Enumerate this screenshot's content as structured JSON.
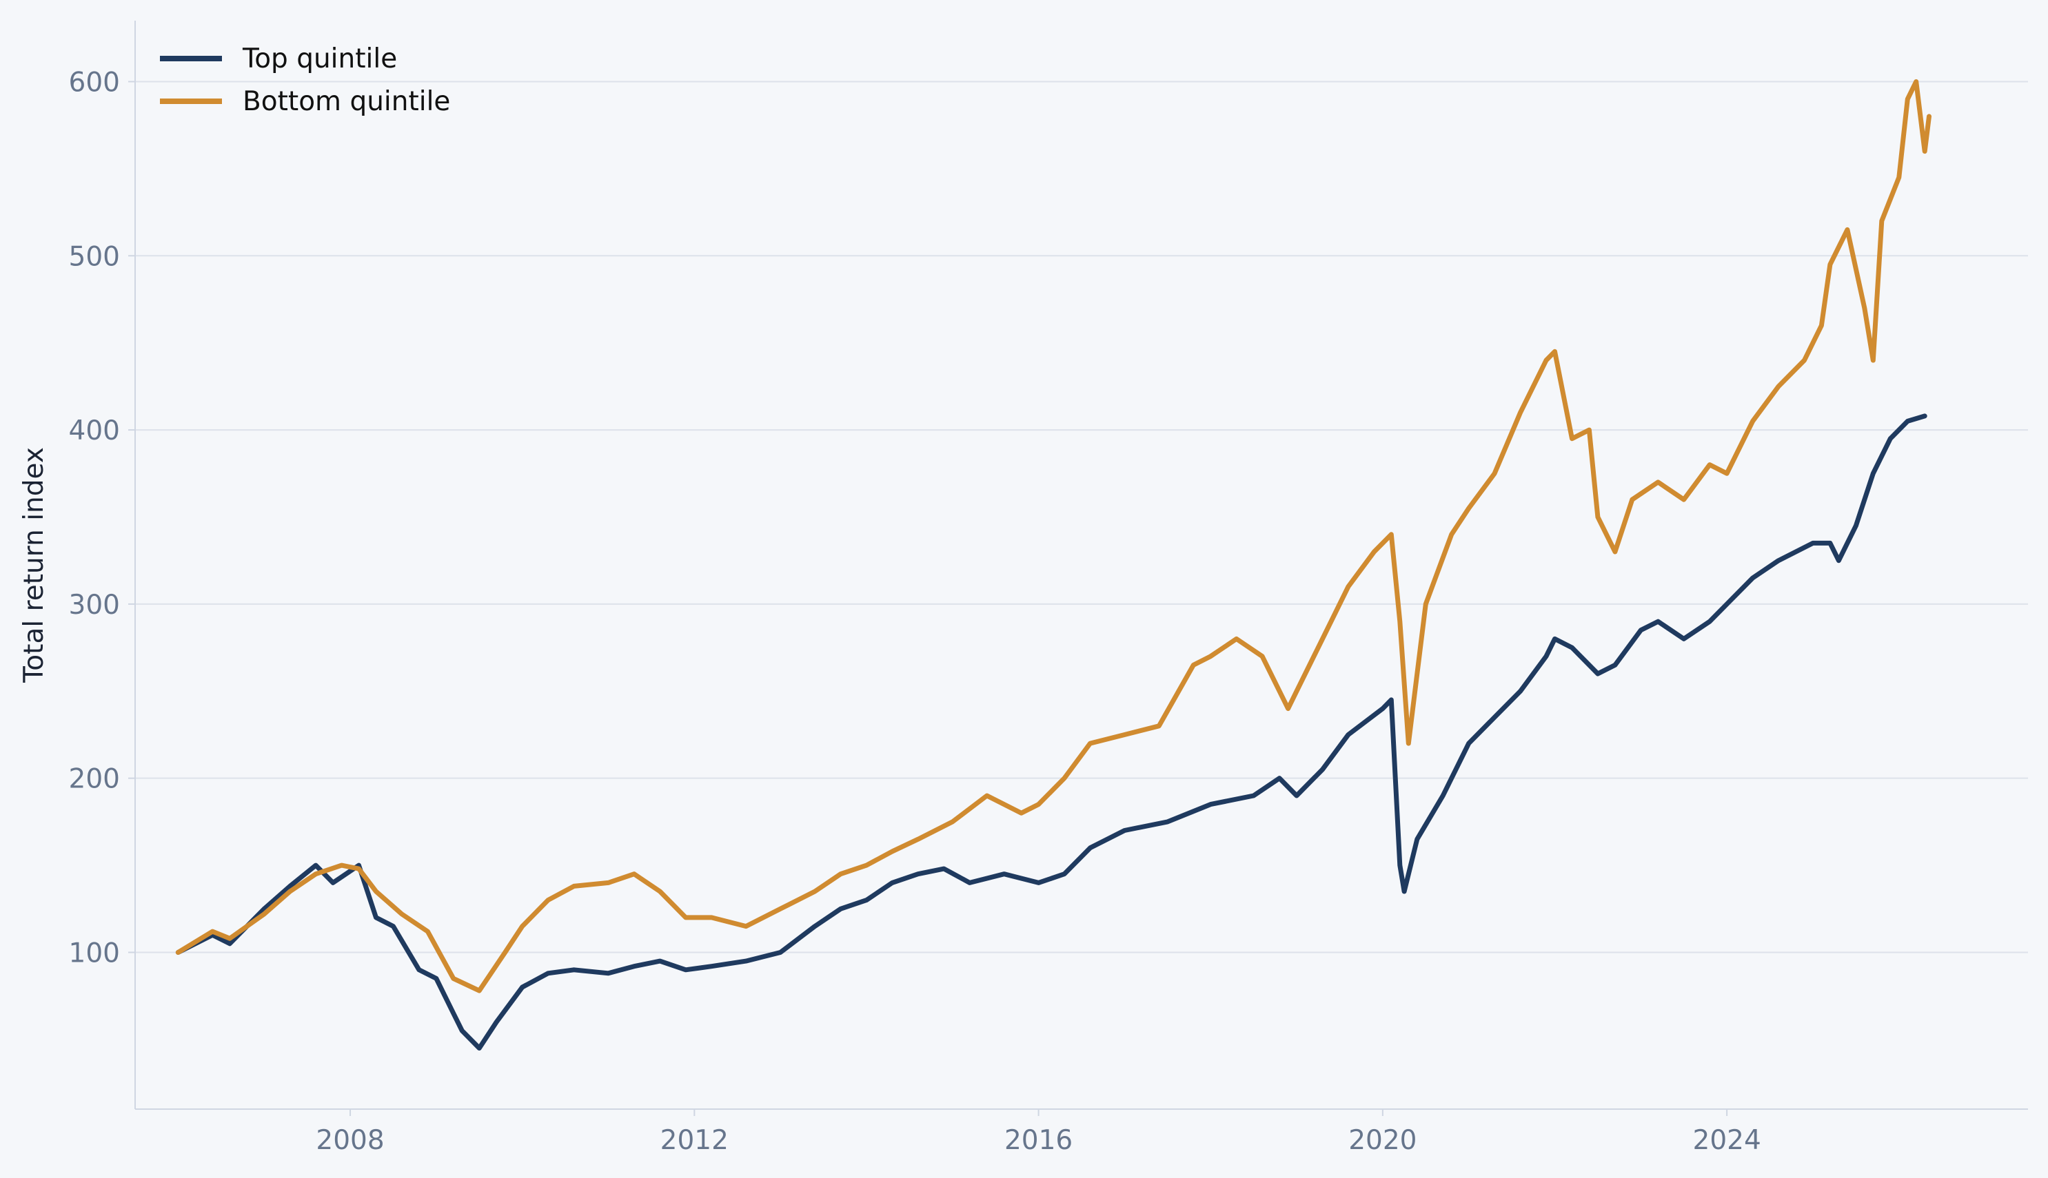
{
  "chart_data": {
    "type": "line",
    "title": "",
    "xlabel": "",
    "ylabel": "Total return index",
    "xlim": [
      2005.5,
      2027.5
    ],
    "ylim": [
      10,
      635
    ],
    "x_ticks": [
      2008,
      2012,
      2016,
      2020,
      2024
    ],
    "x_tick_labels": [
      "2008",
      "2012",
      "2016",
      "2020",
      "2024"
    ],
    "y_ticks": [
      100,
      200,
      300,
      400,
      500,
      600
    ],
    "y_tick_labels": [
      "100",
      "200",
      "300",
      "400",
      "500",
      "600"
    ],
    "grid": "horizontal",
    "legend": "top-left",
    "series": [
      {
        "name": "Top quintile",
        "color": "#1f3a5f",
        "points": [
          [
            2006.0,
            100
          ],
          [
            2006.4,
            110
          ],
          [
            2006.6,
            105
          ],
          [
            2007.0,
            125
          ],
          [
            2007.3,
            138
          ],
          [
            2007.6,
            150
          ],
          [
            2007.8,
            140
          ],
          [
            2008.1,
            150
          ],
          [
            2008.3,
            120
          ],
          [
            2008.5,
            115
          ],
          [
            2008.8,
            90
          ],
          [
            2009.0,
            85
          ],
          [
            2009.2,
            65
          ],
          [
            2009.3,
            55
          ],
          [
            2009.5,
            45
          ],
          [
            2009.7,
            60
          ],
          [
            2010.0,
            80
          ],
          [
            2010.3,
            88
          ],
          [
            2010.6,
            90
          ],
          [
            2011.0,
            88
          ],
          [
            2011.3,
            92
          ],
          [
            2011.6,
            95
          ],
          [
            2011.9,
            90
          ],
          [
            2012.2,
            92
          ],
          [
            2012.6,
            95
          ],
          [
            2013.0,
            100
          ],
          [
            2013.4,
            115
          ],
          [
            2013.7,
            125
          ],
          [
            2014.0,
            130
          ],
          [
            2014.3,
            140
          ],
          [
            2014.6,
            145
          ],
          [
            2014.9,
            148
          ],
          [
            2015.2,
            140
          ],
          [
            2015.6,
            145
          ],
          [
            2016.0,
            140
          ],
          [
            2016.3,
            145
          ],
          [
            2016.6,
            160
          ],
          [
            2017.0,
            170
          ],
          [
            2017.5,
            175
          ],
          [
            2018.0,
            185
          ],
          [
            2018.5,
            190
          ],
          [
            2018.8,
            200
          ],
          [
            2019.0,
            190
          ],
          [
            2019.3,
            205
          ],
          [
            2019.6,
            225
          ],
          [
            2020.0,
            240
          ],
          [
            2020.1,
            245
          ],
          [
            2020.2,
            150
          ],
          [
            2020.25,
            135
          ],
          [
            2020.4,
            165
          ],
          [
            2020.7,
            190
          ],
          [
            2021.0,
            220
          ],
          [
            2021.3,
            235
          ],
          [
            2021.6,
            250
          ],
          [
            2021.9,
            270
          ],
          [
            2022.0,
            280
          ],
          [
            2022.2,
            275
          ],
          [
            2022.5,
            260
          ],
          [
            2022.7,
            265
          ],
          [
            2023.0,
            285
          ],
          [
            2023.2,
            290
          ],
          [
            2023.5,
            280
          ],
          [
            2023.8,
            290
          ],
          [
            2024.0,
            300
          ],
          [
            2024.3,
            315
          ],
          [
            2024.6,
            325
          ],
          [
            2025.0,
            335
          ],
          [
            2025.2,
            335
          ],
          [
            2025.3,
            325
          ],
          [
            2025.5,
            345
          ],
          [
            2025.7,
            375
          ],
          [
            2025.9,
            395
          ],
          [
            2026.1,
            405
          ],
          [
            2026.3,
            408
          ]
        ]
      },
      {
        "name": "Bottom quintile",
        "color": "#d08b30",
        "points": [
          [
            2006.0,
            100
          ],
          [
            2006.4,
            112
          ],
          [
            2006.6,
            108
          ],
          [
            2007.0,
            122
          ],
          [
            2007.3,
            135
          ],
          [
            2007.6,
            145
          ],
          [
            2007.9,
            150
          ],
          [
            2008.1,
            148
          ],
          [
            2008.3,
            135
          ],
          [
            2008.6,
            122
          ],
          [
            2008.9,
            112
          ],
          [
            2009.2,
            85
          ],
          [
            2009.5,
            78
          ],
          [
            2009.8,
            100
          ],
          [
            2010.0,
            115
          ],
          [
            2010.3,
            130
          ],
          [
            2010.6,
            138
          ],
          [
            2011.0,
            140
          ],
          [
            2011.3,
            145
          ],
          [
            2011.6,
            135
          ],
          [
            2011.9,
            120
          ],
          [
            2012.2,
            120
          ],
          [
            2012.6,
            115
          ],
          [
            2013.0,
            125
          ],
          [
            2013.4,
            135
          ],
          [
            2013.7,
            145
          ],
          [
            2014.0,
            150
          ],
          [
            2014.3,
            158
          ],
          [
            2014.6,
            165
          ],
          [
            2015.0,
            175
          ],
          [
            2015.4,
            190
          ],
          [
            2015.8,
            180
          ],
          [
            2016.0,
            185
          ],
          [
            2016.3,
            200
          ],
          [
            2016.6,
            220
          ],
          [
            2017.0,
            225
          ],
          [
            2017.4,
            230
          ],
          [
            2017.8,
            265
          ],
          [
            2018.0,
            270
          ],
          [
            2018.3,
            280
          ],
          [
            2018.6,
            270
          ],
          [
            2018.9,
            240
          ],
          [
            2019.0,
            250
          ],
          [
            2019.3,
            280
          ],
          [
            2019.6,
            310
          ],
          [
            2019.9,
            330
          ],
          [
            2020.1,
            340
          ],
          [
            2020.2,
            290
          ],
          [
            2020.3,
            220
          ],
          [
            2020.5,
            300
          ],
          [
            2020.8,
            340
          ],
          [
            2021.0,
            355
          ],
          [
            2021.3,
            375
          ],
          [
            2021.6,
            410
          ],
          [
            2021.9,
            440
          ],
          [
            2022.0,
            445
          ],
          [
            2022.2,
            395
          ],
          [
            2022.4,
            400
          ],
          [
            2022.5,
            350
          ],
          [
            2022.7,
            330
          ],
          [
            2022.9,
            360
          ],
          [
            2023.2,
            370
          ],
          [
            2023.5,
            360
          ],
          [
            2023.8,
            380
          ],
          [
            2024.0,
            375
          ],
          [
            2024.3,
            405
          ],
          [
            2024.6,
            425
          ],
          [
            2024.9,
            440
          ],
          [
            2025.1,
            460
          ],
          [
            2025.2,
            495
          ],
          [
            2025.4,
            515
          ],
          [
            2025.6,
            470
          ],
          [
            2025.7,
            440
          ],
          [
            2025.8,
            520
          ],
          [
            2026.0,
            545
          ],
          [
            2026.1,
            590
          ],
          [
            2026.2,
            600
          ],
          [
            2026.3,
            560
          ],
          [
            2026.35,
            580
          ]
        ]
      }
    ]
  }
}
